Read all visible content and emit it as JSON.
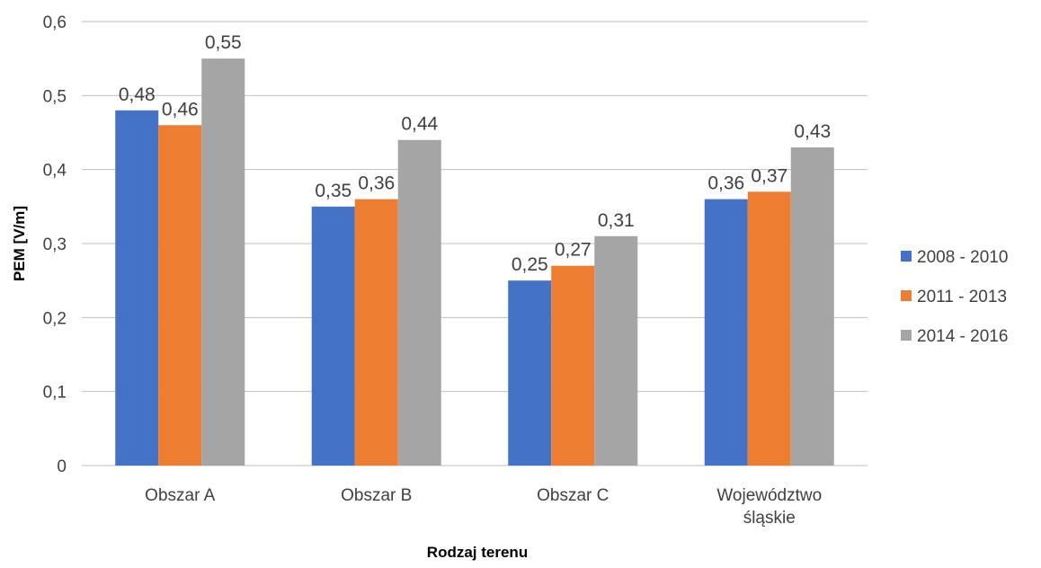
{
  "chart_data": {
    "type": "bar",
    "categories": [
      [
        "Obszar A"
      ],
      [
        "Obszar B"
      ],
      [
        "Obszar C"
      ],
      [
        "Województwo",
        "śląskie"
      ]
    ],
    "series": [
      {
        "name": "2008 - 2010",
        "values": [
          0.48,
          0.35,
          0.25,
          0.36
        ],
        "labels": [
          "0,48",
          "0,35",
          "0,25",
          "0,36"
        ],
        "color": "#4472C4"
      },
      {
        "name": "2011 - 2013",
        "values": [
          0.46,
          0.36,
          0.27,
          0.37
        ],
        "labels": [
          "0,46",
          "0,36",
          "0,27",
          "0,37"
        ],
        "color": "#ED7D31"
      },
      {
        "name": "2014 - 2016",
        "values": [
          0.55,
          0.44,
          0.31,
          0.43
        ],
        "labels": [
          "0,55",
          "0,44",
          "0,31",
          "0,43"
        ],
        "color": "#A5A5A5"
      }
    ],
    "yticks": [
      0,
      0.1,
      0.2,
      0.3,
      0.4,
      0.5,
      0.6
    ],
    "ytick_labels": [
      "0",
      "0,1",
      "0,2",
      "0,3",
      "0,4",
      "0,5",
      "0,6"
    ],
    "ylim": [
      0,
      0.6
    ],
    "xlabel": "Rodzaj terenu",
    "ylabel": "PEM [V/m]",
    "grid": true,
    "legend_position": "right",
    "gridline_color": "#BFBFBF",
    "axis_color": "#BFBFBF"
  }
}
